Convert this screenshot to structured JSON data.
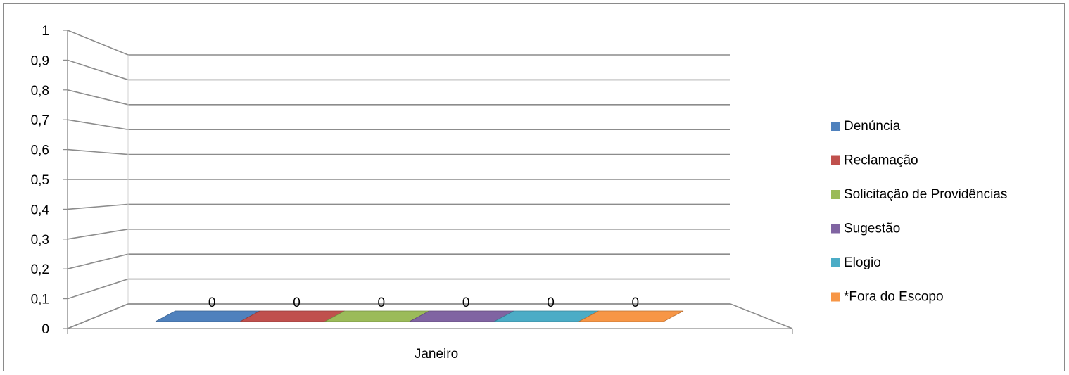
{
  "chart_data": {
    "type": "bar",
    "style": "3d-column",
    "categories": [
      "Janeiro"
    ],
    "series": [
      {
        "name": "Denúncia",
        "values": [
          0
        ],
        "color": "#4F81BD"
      },
      {
        "name": "Reclamação",
        "values": [
          0
        ],
        "color": "#C0504D"
      },
      {
        "name": "Solicitação de Providências",
        "values": [
          0
        ],
        "color": "#9BBB59"
      },
      {
        "name": "Sugestão",
        "values": [
          0
        ],
        "color": "#8064A2"
      },
      {
        "name": "Elogio",
        "values": [
          0
        ],
        "color": "#4BACC6"
      },
      {
        "name": "*Fora do Escopo",
        "values": [
          0
        ],
        "color": "#F79646"
      }
    ],
    "data_labels": [
      "0",
      "0",
      "0",
      "0",
      "0",
      "0"
    ],
    "y_ticks": [
      "0",
      "0,1",
      "0,2",
      "0,3",
      "0,4",
      "0,5",
      "0,6",
      "0,7",
      "0,8",
      "0,9",
      "1"
    ],
    "ylim": [
      0,
      1
    ],
    "grid": true,
    "legend_position": "right",
    "title": "",
    "xlabel": "",
    "ylabel": ""
  }
}
